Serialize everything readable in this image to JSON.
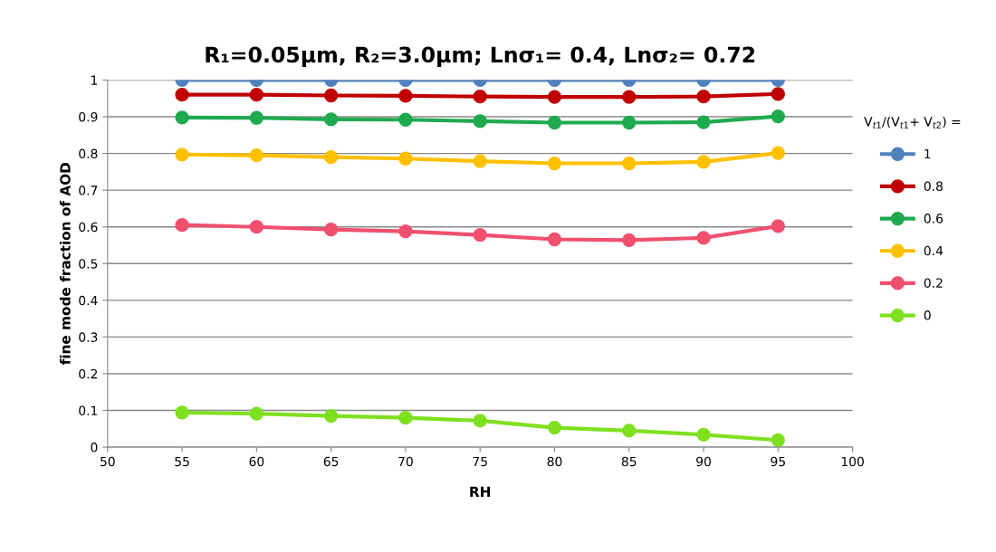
{
  "chart_data": {
    "type": "line",
    "title": "R₁=0.05µm, R₂=3.0µm; Lnσ₁= 0.4, Lnσ₂= 0.72",
    "xlabel": "RH",
    "ylabel": "fine mode fraction of AOD",
    "legend_title": "V$_{t1}$/(V$_{t1}$+ V$_{t2}$) =",
    "x": [
      55,
      60,
      65,
      70,
      75,
      80,
      85,
      90,
      95
    ],
    "series": [
      {
        "name": "1",
        "color": "#4f81bd",
        "values": [
          1,
          1,
          1,
          1,
          1,
          1,
          1,
          1,
          1
        ]
      },
      {
        "name": "0.8",
        "color": "#c00000",
        "values": [
          0.96,
          0.96,
          0.958,
          0.957,
          0.955,
          0.954,
          0.954,
          0.955,
          0.962
        ]
      },
      {
        "name": "0.6",
        "color": "#1faa4f",
        "values": [
          0.898,
          0.897,
          0.893,
          0.892,
          0.888,
          0.884,
          0.884,
          0.885,
          0.901
        ]
      },
      {
        "name": "0.4",
        "color": "#ffc000",
        "values": [
          0.797,
          0.795,
          0.79,
          0.786,
          0.779,
          0.773,
          0.773,
          0.777,
          0.801
        ]
      },
      {
        "name": "0.2",
        "color": "#f0506e",
        "values": [
          0.605,
          0.6,
          0.593,
          0.588,
          0.578,
          0.566,
          0.564,
          0.57,
          0.602
        ]
      },
      {
        "name": "0",
        "color": "#7fe020",
        "values": [
          0.094,
          0.091,
          0.085,
          0.08,
          0.072,
          0.053,
          0.045,
          0.034,
          0.019
        ]
      }
    ],
    "xlim": [
      50,
      100
    ],
    "xticks": [
      50,
      55,
      60,
      65,
      70,
      75,
      80,
      85,
      90,
      95,
      100
    ],
    "ylim": [
      0,
      1
    ],
    "yticks": [
      0,
      0.1,
      0.2,
      0.3,
      0.4,
      0.5,
      0.6,
      0.7,
      0.8,
      0.9,
      1
    ],
    "grid": "y",
    "legend": "right",
    "marker": "circle",
    "line_style": "solid"
  }
}
